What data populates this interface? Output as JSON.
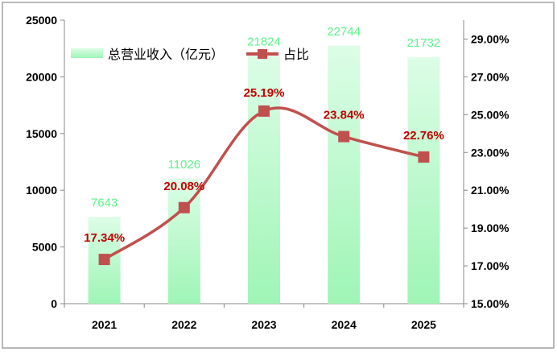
{
  "chart_data": {
    "type": "bar",
    "title": "",
    "categories": [
      "2021",
      "2022",
      "2023",
      "2024",
      "2025"
    ],
    "series": [
      {
        "name": "总营业收入（亿元）",
        "type": "bar",
        "axis": "left",
        "values": [
          7643,
          11026,
          21824,
          22744,
          21732
        ],
        "labels": [
          "7643",
          "11026",
          "21824",
          "22744",
          "21732"
        ]
      },
      {
        "name": "占比",
        "type": "line",
        "axis": "right",
        "values": [
          17.34,
          20.08,
          25.19,
          23.84,
          22.76
        ],
        "labels": [
          "17.34%",
          "20.08%",
          "25.19%",
          "23.84%",
          "22.76%"
        ]
      }
    ],
    "left_axis": {
      "ylim": [
        0,
        25000
      ],
      "ticks": [
        "0",
        "5000",
        "10000",
        "15000",
        "20000",
        "25000"
      ],
      "tick_values": [
        0,
        5000,
        10000,
        15000,
        20000,
        25000
      ]
    },
    "right_axis": {
      "ylim": [
        15,
        30
      ],
      "ticks": [
        "15.00%",
        "17.00%",
        "19.00%",
        "21.00%",
        "23.00%",
        "25.00%",
        "27.00%",
        "29.00%"
      ],
      "tick_values": [
        15,
        17,
        19,
        21,
        23,
        25,
        27,
        29
      ]
    },
    "grid": false,
    "legend": "top-left",
    "colors": {
      "bar_top": "#dcfde6",
      "bar_bottom": "#9ff5b6",
      "bar_label": "#5cf28a",
      "line": "#c0504d",
      "line_label": "#c00000",
      "border": "#a0a0a0"
    }
  }
}
